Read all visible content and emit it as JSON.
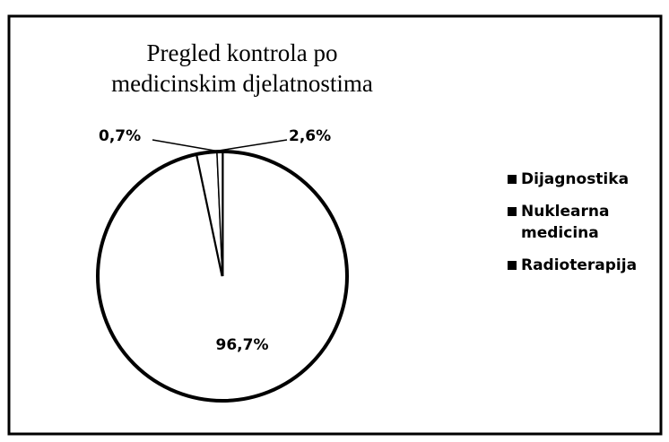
{
  "chart_data": {
    "type": "pie",
    "title": "Pregled kontrola po medicinskim djelatnostima",
    "categories": [
      "Dijagnostika",
      "Nuklearna medicina",
      "Radioterapija"
    ],
    "values": [
      96.7,
      2.6,
      0.7
    ],
    "value_labels": [
      "96,7%",
      "2,6%",
      "0,7%"
    ],
    "colors": [
      "#ffffff",
      "#ffffff",
      "#ffffff"
    ],
    "legend": "right"
  }
}
